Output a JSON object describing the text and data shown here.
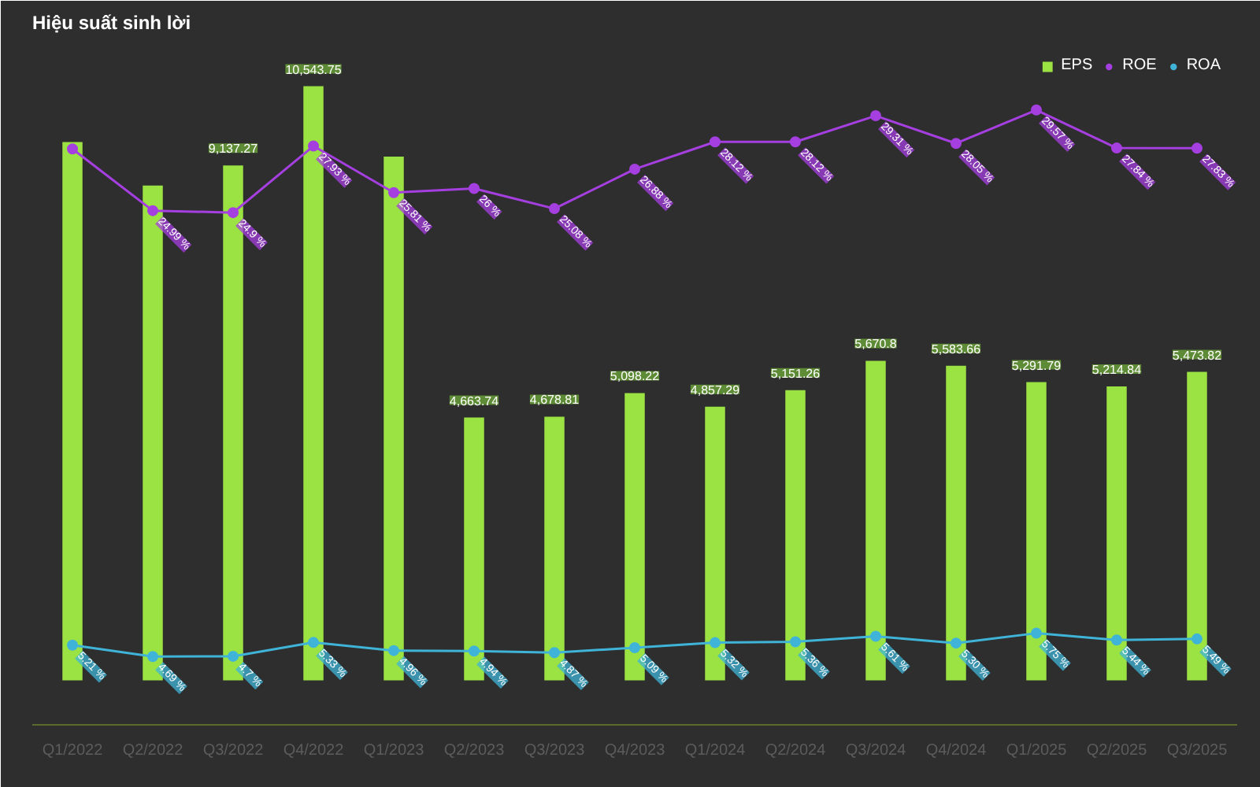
{
  "chart_data": {
    "type": "bar",
    "title": "Hiệu suất sinh lời",
    "categories": [
      "Q1/2022",
      "Q2/2022",
      "Q3/2022",
      "Q4/2022",
      "Q1/2023",
      "Q2/2023",
      "Q3/2023",
      "Q4/2023",
      "Q1/2024",
      "Q2/2024",
      "Q3/2024",
      "Q4/2024",
      "Q1/2025",
      "Q2/2025",
      "Q3/2025"
    ],
    "series": [
      {
        "name": "EPS",
        "color": "#9be342",
        "values": [
          9554,
          8780,
          9137.27,
          10543.75,
          9295,
          4663.74,
          4678.81,
          5098.22,
          4857.29,
          5151.26,
          5670.8,
          5583.66,
          5291.79,
          5214.84,
          5473.82
        ],
        "value_labels": [
          null,
          null,
          "9,137.27",
          "10,543.75",
          null,
          "4,663.74",
          "4,678.81",
          "5,098.22",
          "4,857.29",
          "5,151.26",
          "5,670.8",
          "5,583.66",
          "5,291.79",
          "5,214.84",
          "5,473.82"
        ]
      },
      {
        "name": "ROE",
        "type": "line",
        "axis": "y2",
        "color": "#a53fe0",
        "values": [
          27.8,
          24.99,
          24.9,
          27.93,
          25.81,
          26,
          25.08,
          26.88,
          28.12,
          28.12,
          29.31,
          28.05,
          29.57,
          27.84,
          27.83
        ],
        "value_labels": [
          null,
          "24.99 %",
          "24.9 %",
          "27.93 %",
          "25.81 %",
          "26 %",
          "25.08 %",
          "26.88 %",
          "28.12 %",
          "28.12 %",
          "29.31 %",
          "28.05 %",
          "29.57 %",
          "27.84 %",
          "27.83 %"
        ]
      },
      {
        "name": "ROA",
        "type": "line",
        "axis": "y2",
        "color": "#3fb4d8",
        "values": [
          5.21,
          4.69,
          4.7,
          5.33,
          4.96,
          4.94,
          4.87,
          5.09,
          5.32,
          5.36,
          5.61,
          5.3,
          5.75,
          5.44,
          5.49
        ],
        "value_labels": [
          "5.21 %",
          "4.69 %",
          "4.7 %",
          "5.33 %",
          "4.96 %",
          "4.94 %",
          "4.87 %",
          "5.09 %",
          "5.32 %",
          "5.36 %",
          "5.61 %",
          "5.30 %",
          "5.75 %",
          "5.44 %",
          "5.49 %"
        ]
      }
    ],
    "tick_labels": "x",
    "marker": "circle",
    "legend": "top right"
  }
}
